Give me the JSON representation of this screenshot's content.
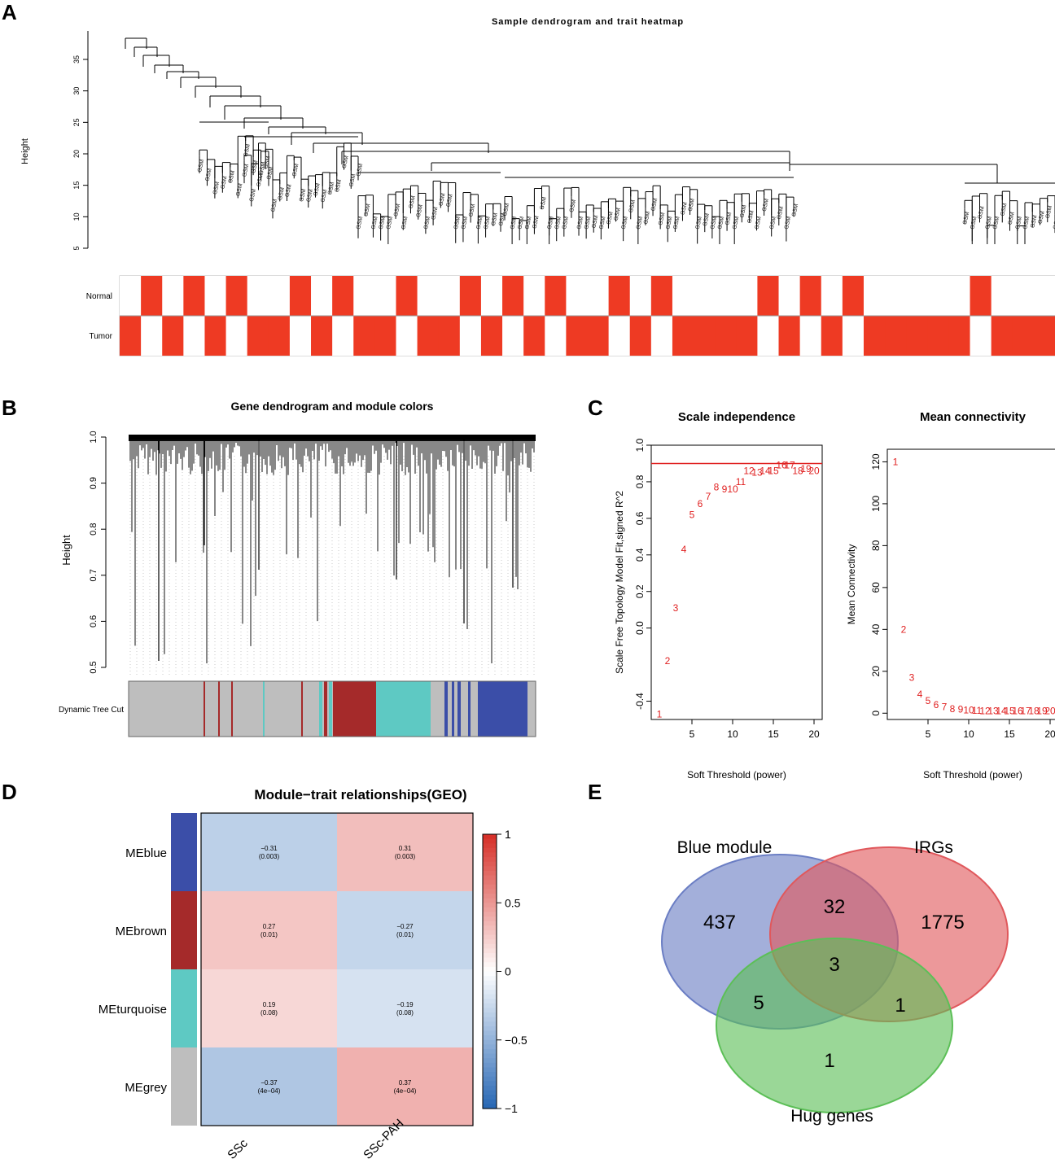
{
  "panels": {
    "A": {
      "letter": "A",
      "title": "Sample dendrogram and trait heatmap",
      "ylabel": "Height",
      "yticks": [
        "5",
        "10",
        "15",
        "20",
        "25",
        "30",
        "35"
      ],
      "traits": [
        "Normal",
        "Tumor"
      ],
      "normal_pattern": [
        0,
        1,
        0,
        1,
        0,
        1,
        0,
        0,
        1,
        0,
        1,
        0,
        0,
        1,
        0,
        0,
        1,
        0,
        1,
        0,
        1,
        0,
        0,
        1,
        0,
        1,
        0,
        0,
        0,
        0,
        1,
        0,
        1,
        0,
        1,
        0,
        0,
        0,
        0,
        0,
        1,
        0,
        0,
        0
      ],
      "colors": {
        "present": "#ee3a23",
        "absent": "#ffffff"
      }
    },
    "B": {
      "letter": "B",
      "title": "Gene dendrogram and module colors",
      "ylabel": "Height",
      "yticks": [
        "0.5",
        "0.6",
        "0.7",
        "0.8",
        "0.9",
        "1.0"
      ],
      "track_label": "Dynamic Tree Cut",
      "module_colors": {
        "grey": "#bebebe",
        "brown": "#a52a2a",
        "turquoise": "#5ec9c3",
        "blue": "#3b4ea8"
      }
    },
    "C": {
      "letter": "C"
    },
    "D": {
      "letter": "D",
      "title": "Module−trait relationships(GEO)",
      "legend_ticks": [
        "1",
        "0.5",
        "0",
        "−0.5",
        "−1"
      ]
    },
    "E": {
      "letter": "E"
    }
  },
  "chart_data": [
    {
      "type": "scatter",
      "title": "Scale independence",
      "xlabel": "Soft Threshold (power)",
      "ylabel": "Scale Free Topology Model Fit,signed R^2",
      "x": [
        1,
        2,
        3,
        4,
        5,
        6,
        7,
        8,
        9,
        10,
        11,
        12,
        13,
        14,
        15,
        16,
        17,
        18,
        19,
        20
      ],
      "y": [
        -0.47,
        -0.18,
        0.11,
        0.43,
        0.62,
        0.68,
        0.72,
        0.77,
        0.76,
        0.76,
        0.8,
        0.86,
        0.85,
        0.86,
        0.86,
        0.89,
        0.89,
        0.86,
        0.87,
        0.86
      ],
      "point_labels": [
        "1",
        "2",
        "3",
        "4",
        "5",
        "6",
        "7",
        "8",
        "9",
        "10",
        "11",
        "12",
        "13",
        "14",
        "15",
        "16",
        "17",
        "18",
        "19",
        "20"
      ],
      "hline": 0.9,
      "xlim": [
        0,
        21
      ],
      "ylim": [
        -0.5,
        1.0
      ],
      "xticks": [
        "5",
        "10",
        "15",
        "20"
      ],
      "yticks": [
        "-0.4",
        "0.0",
        "0.2",
        "0.4",
        "0.6",
        "0.8",
        "1.0"
      ]
    },
    {
      "type": "scatter",
      "title": "Mean connectivity",
      "xlabel": "Soft Threshold (power)",
      "ylabel": "Mean Connectivity",
      "x": [
        1,
        2,
        3,
        4,
        5,
        6,
        7,
        8,
        9,
        10,
        11,
        12,
        13,
        14,
        15,
        16,
        17,
        18,
        19,
        20
      ],
      "y": [
        120,
        40,
        17,
        9,
        6,
        4,
        3,
        2,
        1.8,
        1.5,
        1.2,
        1,
        1,
        1,
        1,
        1,
        1,
        1,
        1,
        1
      ],
      "point_labels": [
        "1",
        "2",
        "3",
        "4",
        "5",
        "6",
        "7",
        "8",
        "9",
        "10",
        "11",
        "12",
        "13",
        "14",
        "15",
        "16",
        "17",
        "18",
        "19",
        "20"
      ],
      "xlim": [
        0,
        21
      ],
      "ylim": [
        -3,
        126
      ],
      "xticks": [
        "5",
        "10",
        "15",
        "20"
      ],
      "yticks": [
        "0",
        "20",
        "40",
        "60",
        "80",
        "100",
        "120"
      ]
    },
    {
      "type": "heatmap",
      "title": "Module−trait relationships(GEO)",
      "rows": [
        "MEblue",
        "MEbrown",
        "MEturquoise",
        "MEgrey"
      ],
      "row_colors": [
        "#3b4ea8",
        "#a52a2a",
        "#5ec9c3",
        "#bebebe"
      ],
      "columns": [
        "SSc",
        "SSc-PAH"
      ],
      "values": [
        [
          -0.31,
          0.31
        ],
        [
          0.27,
          -0.27
        ],
        [
          0.19,
          -0.19
        ],
        [
          -0.37,
          0.37
        ]
      ],
      "cell_text": [
        [
          "−0.31",
          "0.31"
        ],
        [
          "0.27",
          "−0.27"
        ],
        [
          "0.19",
          "−0.19"
        ],
        [
          "−0.37",
          "0.37"
        ]
      ],
      "pvalues": [
        [
          "(0.003)",
          "(0.003)"
        ],
        [
          "(0.01)",
          "(0.01)"
        ],
        [
          "(0.08)",
          "(0.08)"
        ],
        [
          "(4e−04)",
          "(4e−04)"
        ]
      ],
      "zlim": [
        -1,
        1
      ]
    },
    {
      "type": "venn",
      "sets": [
        "Blue module",
        "IRGs",
        "Hug genes"
      ],
      "set_colors": [
        "#6b7ec4",
        "#e0585c",
        "#5cbf57"
      ],
      "regions": {
        "blue_only": "437",
        "irgs_only": "1775",
        "hug_only": "1",
        "blue_irgs": "32",
        "blue_hug": "5",
        "irgs_hug": "1",
        "all_three": "3"
      }
    }
  ]
}
